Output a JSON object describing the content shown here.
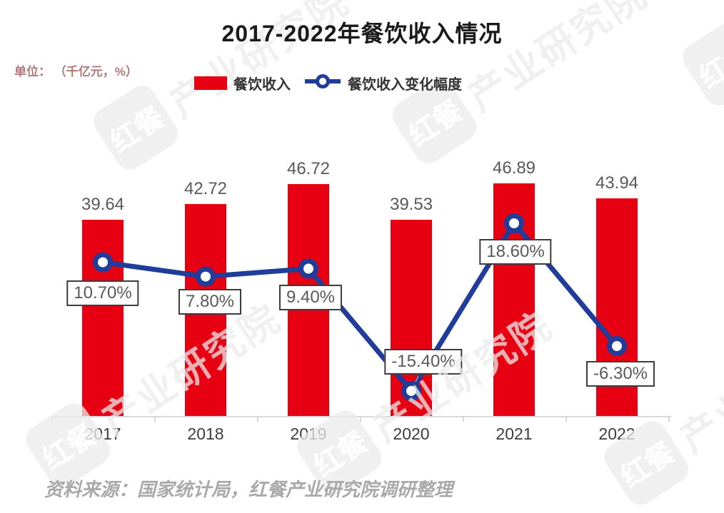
{
  "title": "2017-2022年餐饮收入情况",
  "unit_label": "单位： （千亿元，%）",
  "legend": {
    "bar_label": "餐饮收入",
    "line_label": "餐饮收入变化幅度"
  },
  "source": "资料来源：国家统计局，红餐产业研究院调研整理",
  "watermark": {
    "badge_text": "红餐",
    "brand_text": "产业研究院"
  },
  "colors": {
    "bar_red": "#e60012",
    "line_blue": "#1f3d99",
    "value_label_gray": "#595959",
    "axis_gray": "#d9d9d9",
    "unit_red": "#b17979",
    "source_gray": "#a9a9a9"
  },
  "chart_data": {
    "type": "bar",
    "subtype": "bar+line combo",
    "title": "2017-2022年餐饮收入情况",
    "categories": [
      "2017",
      "2018",
      "2019",
      "2020",
      "2021",
      "2022"
    ],
    "series": [
      {
        "name": "餐饮收入",
        "type": "bar",
        "unit": "千亿元",
        "color": "#e60012",
        "values": [
          39.64,
          42.72,
          46.72,
          39.53,
          46.89,
          43.94
        ],
        "labels": [
          "39.64",
          "42.72",
          "46.72",
          "39.53",
          "46.89",
          "43.94"
        ]
      },
      {
        "name": "餐饮收入变化幅度",
        "type": "line",
        "unit": "%",
        "color": "#1f3d99",
        "values": [
          10.7,
          7.8,
          9.4,
          -15.4,
          18.6,
          -6.3
        ],
        "labels": [
          "10.70%",
          "7.80%",
          "9.40%",
          "-15.40%",
          "18.60%",
          "-6.30%"
        ]
      }
    ],
    "xlabel": "",
    "ylabel": "（千亿元，%）",
    "bar_axis_range": [
      0,
      50
    ],
    "line_axis_range": [
      -20,
      25
    ],
    "grid": false,
    "axis_labels_hidden": true,
    "legend_position": "top",
    "data_labels_visible": true
  }
}
